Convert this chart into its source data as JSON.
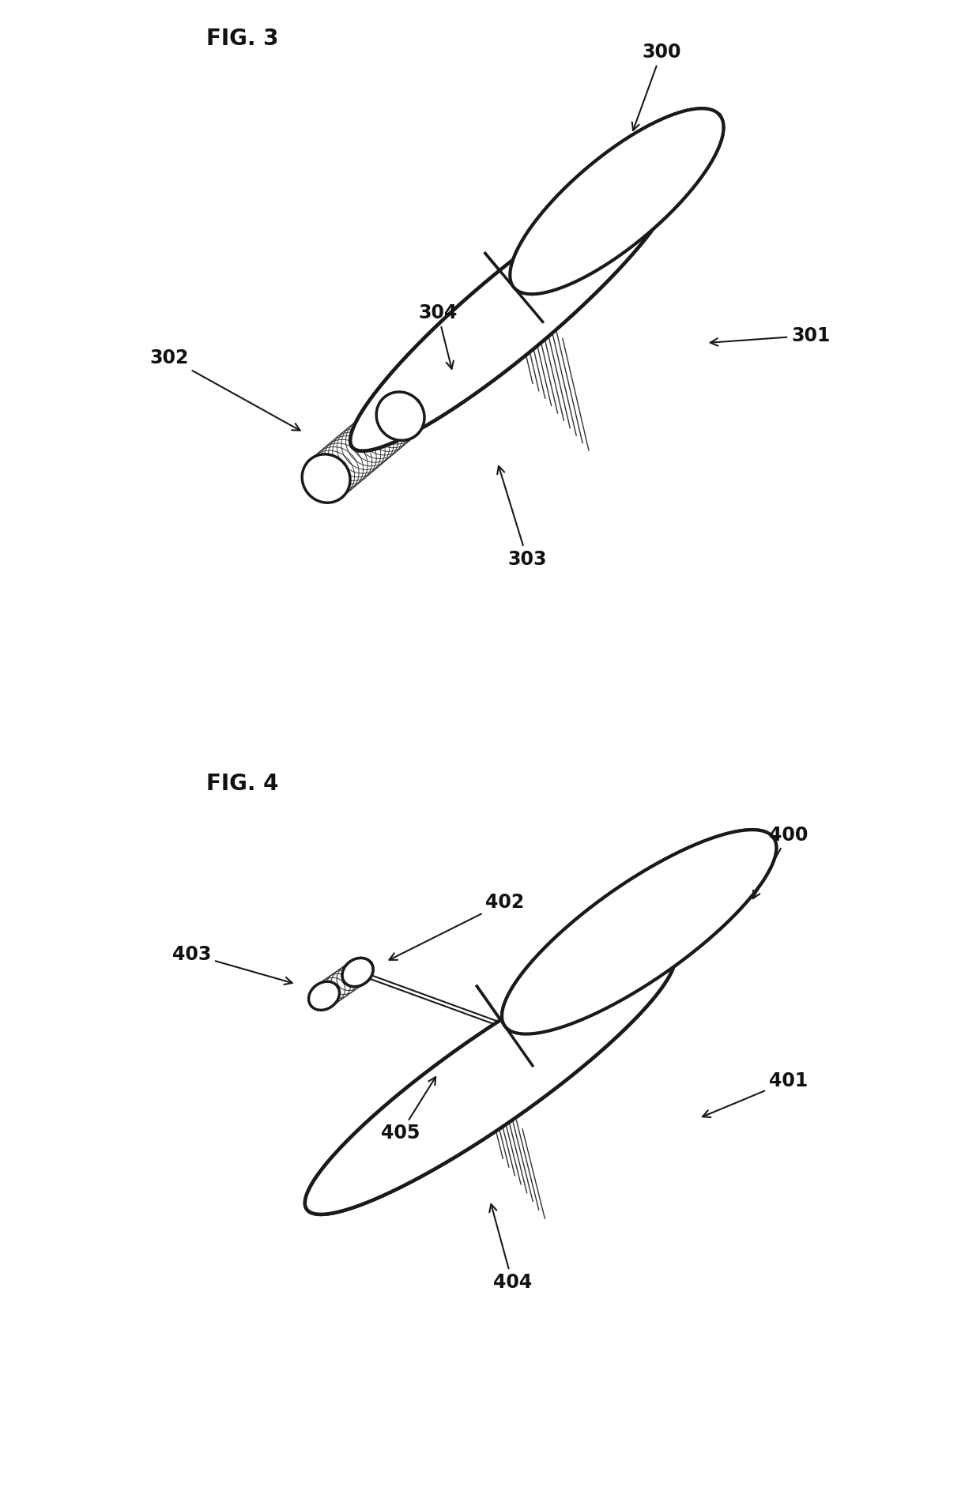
{
  "fig_title1": "FIG. 3",
  "fig_title2": "FIG. 4",
  "bg_color": "#ffffff",
  "line_color": "#1a1a1a",
  "label_color": "#111111",
  "font_size_title": 20,
  "font_size_label": 17,
  "line_width": 2.5
}
